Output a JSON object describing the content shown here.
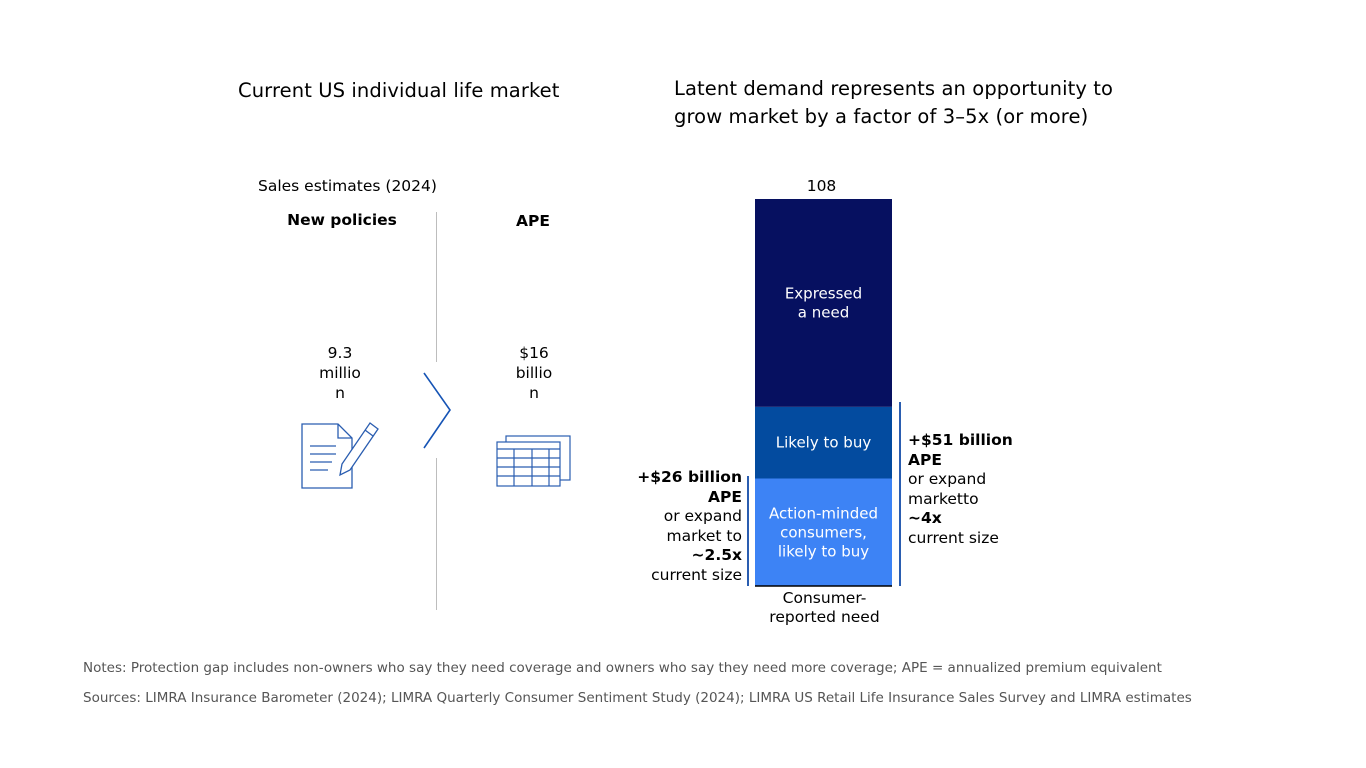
{
  "left": {
    "title": "Current US individual life market",
    "subtitle": "Sales estimates (2024)",
    "col1_header": "New policies",
    "col2_header": "APE",
    "col1_value": [
      "9.3",
      "millio",
      "n"
    ],
    "col2_value": [
      "$16",
      "billio",
      "n"
    ],
    "icons": [
      "document-pen-icon",
      "spreadsheet-icon",
      "chevron-right-icon"
    ]
  },
  "right": {
    "title_line1": "Latent demand represents an opportunity to",
    "title_line2": "grow market by a factor of 3–5x (or more)",
    "bracket_left": {
      "bold1": "+$26 billion",
      "bold2": "APE",
      "line3": "or expand",
      "line4": "market to",
      "bold5": "~2.5x",
      "line6": "current size"
    },
    "bracket_right": {
      "bold1": "+$51 billion",
      "bold2": "APE",
      "line3": "or expand",
      "line4": "marketto",
      "bold5": "~4x",
      "line6": "current size"
    }
  },
  "chart_data": {
    "type": "bar",
    "stacked": true,
    "categories": [
      "Consumer-reported need"
    ],
    "category_label_lines": [
      "Consumer-",
      "reported need"
    ],
    "total_label": "108",
    "series": [
      {
        "name": "Action-minded consumers, likely to buy",
        "label_lines": [
          "Action-minded",
          "consumers,",
          "likely to buy"
        ],
        "values": [
          30
        ],
        "color": "#3d83f5"
      },
      {
        "name": "Likely to buy",
        "label_lines": [
          "Likely to buy"
        ],
        "values": [
          20
        ],
        "color": "#034b9f"
      },
      {
        "name": "Expressed a need",
        "label_lines": [
          "Expressed",
          "a need"
        ],
        "values": [
          58
        ],
        "color": "#061060"
      }
    ],
    "ylim": [
      0,
      108
    ]
  },
  "footer": {
    "notes": "Notes: Protection gap includes non-owners who say they need coverage and owners who say they need more coverage; APE = annualized premium equivalent",
    "sources": "Sources: LIMRA Insurance Barometer (2024); LIMRA Quarterly Consumer Sentiment Study (2024); LIMRA US Retail Life Insurance Sales Survey and LIMRA estimates"
  }
}
